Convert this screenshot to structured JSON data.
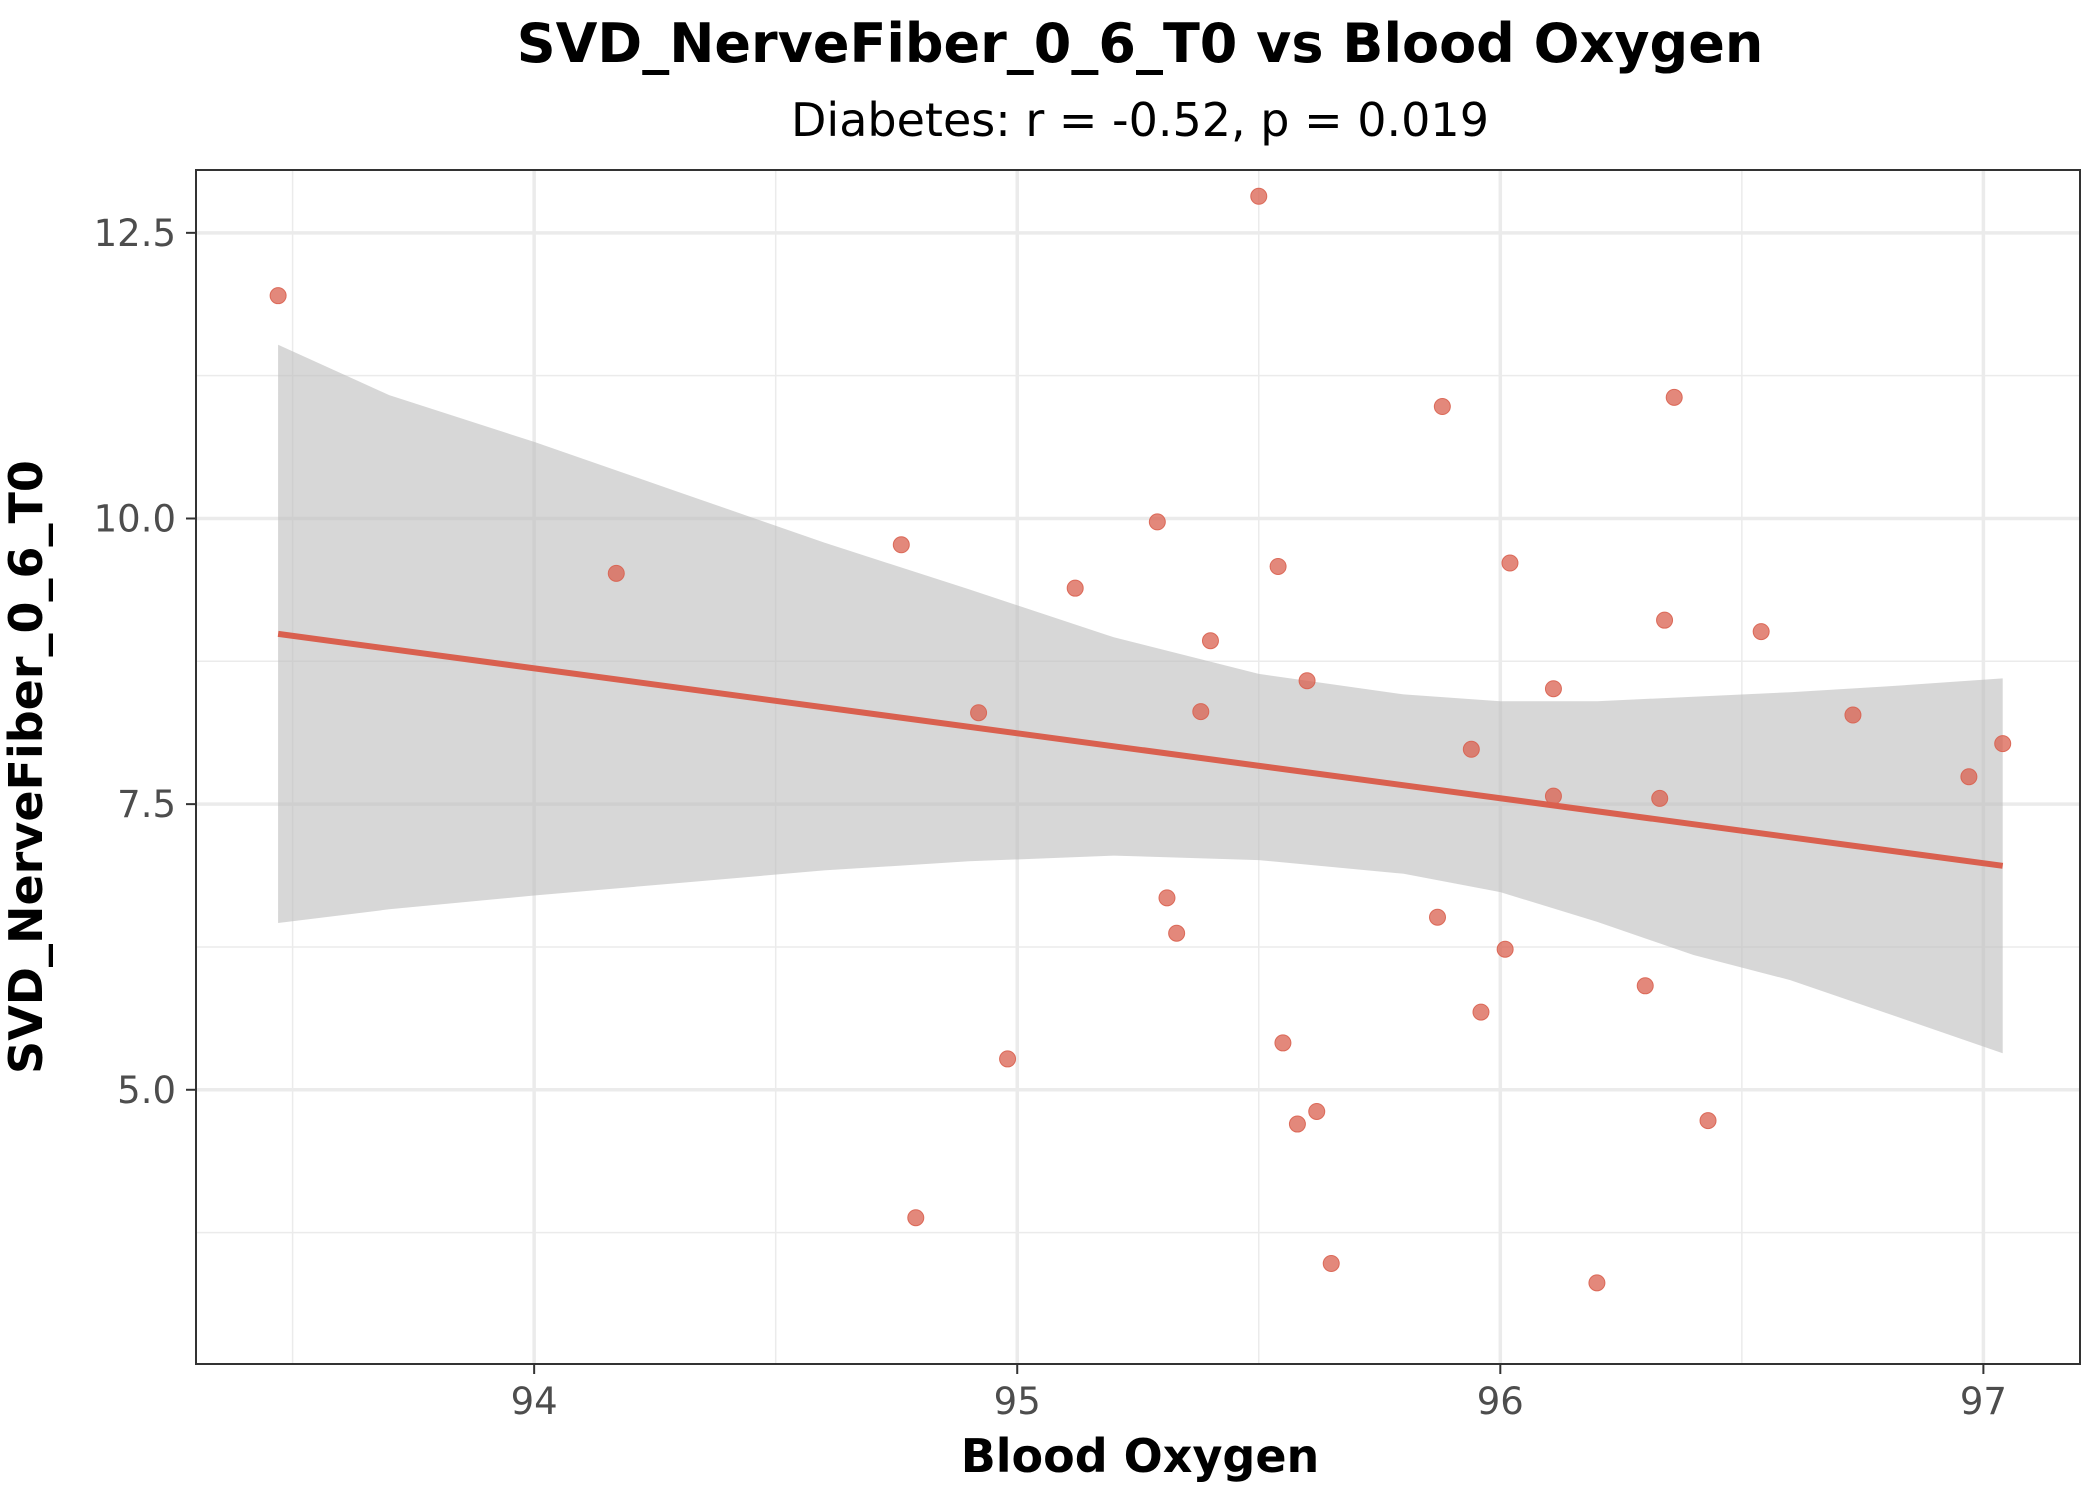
{
  "chart_data": {
    "type": "scatter",
    "title": "SVD_NerveFiber_0_6_T0 vs Blood Oxygen",
    "subtitle": "Diabetes: r = -0.52, p = 0.019",
    "xlabel": "Blood Oxygen",
    "ylabel": "SVD_NerveFiber_0_6_T0",
    "xlim": [
      93.3,
      97.2
    ],
    "ylim": [
      2.6,
      13.05
    ],
    "x_ticks": [
      94,
      95,
      96,
      97
    ],
    "x_tick_labels": [
      "94",
      "95",
      "96",
      "97"
    ],
    "y_ticks": [
      5.0,
      7.5,
      10.0,
      12.5
    ],
    "y_tick_labels": [
      "5.0",
      "7.5",
      "10.0",
      "12.5"
    ],
    "grid": true,
    "legend": "none",
    "colors": {
      "points": "#d9604f",
      "fit_line": "#d9604f",
      "confidence_band": "#bdbdbd",
      "panel_border": "#333333",
      "grid": "#ebebeb"
    },
    "series": [
      {
        "x": [
          93.47,
          94.17,
          94.76,
          94.79,
          94.92,
          94.98,
          95.12,
          95.29,
          95.31,
          95.33,
          95.38,
          95.4,
          95.5,
          95.54,
          95.55,
          95.58,
          95.6,
          95.62,
          95.65,
          95.87,
          95.88,
          95.94,
          95.96,
          96.01,
          96.02,
          96.11,
          96.11,
          96.2,
          96.3,
          96.33,
          96.34,
          96.36,
          96.43,
          96.54,
          96.73,
          96.97,
          97.04
        ],
        "y": [
          11.95,
          9.52,
          9.77,
          3.88,
          8.3,
          5.27,
          9.39,
          9.97,
          6.68,
          6.37,
          8.31,
          8.93,
          12.82,
          9.58,
          5.41,
          4.7,
          8.58,
          4.81,
          3.48,
          6.51,
          10.98,
          7.98,
          5.68,
          6.23,
          9.61,
          8.51,
          7.57,
          3.31,
          5.91,
          7.55,
          9.11,
          11.06,
          4.73,
          9.01,
          8.28,
          7.74,
          8.03
        ]
      }
    ],
    "fit": {
      "x": [
        93.47,
        97.04
      ],
      "y": [
        8.99,
        6.96
      ]
    },
    "confidence_band": {
      "x": [
        93.47,
        93.7,
        94.0,
        94.3,
        94.6,
        94.9,
        95.2,
        95.5,
        95.8,
        96.0,
        96.2,
        96.4,
        96.6,
        96.8,
        97.04
      ],
      "upper": [
        11.52,
        11.08,
        10.67,
        10.23,
        9.79,
        9.38,
        8.96,
        8.64,
        8.46,
        8.4,
        8.4,
        8.44,
        8.48,
        8.53,
        8.6
      ],
      "lower": [
        6.46,
        6.58,
        6.7,
        6.81,
        6.92,
        7.0,
        7.05,
        7.01,
        6.89,
        6.73,
        6.47,
        6.18,
        5.96,
        5.67,
        5.32
      ]
    }
  }
}
